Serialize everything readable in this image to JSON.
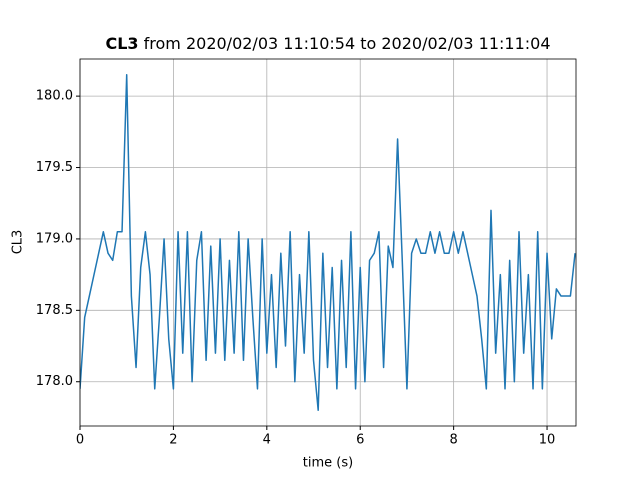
{
  "chart_data": {
    "type": "line",
    "title_bold": "CL3",
    "title": " from 2020/02/03 11:10:54 to 2020/02/03 11:11:04",
    "xlabel": "time (s)",
    "ylabel": "CL3",
    "xlim": [
      0,
      10.62
    ],
    "ylim": [
      177.69,
      180.26
    ],
    "xticks": [
      0,
      2,
      4,
      6,
      8,
      10
    ],
    "yticks": [
      {
        "value": 178,
        "label": "178.0"
      },
      178.5,
      {
        "value": 179,
        "label": "179.0"
      },
      179.5,
      {
        "value": 180,
        "label": "180.0"
      }
    ],
    "grid": true,
    "series": [
      {
        "color": "#1f77b4",
        "x": [
          0,
          0.1,
          0.2,
          0.3,
          0.4,
          0.5,
          0.6,
          0.7,
          0.8,
          0.9,
          1,
          1.1,
          1.2,
          1.3,
          1.4,
          1.5,
          1.6,
          1.7,
          1.8,
          1.9,
          2,
          2.1,
          2.2,
          2.3,
          2.4,
          2.5,
          2.6,
          2.7,
          2.8,
          2.9,
          3,
          3.1,
          3.2,
          3.3,
          3.4,
          3.5,
          3.6,
          3.7,
          3.8,
          3.9,
          4,
          4.1,
          4.2,
          4.3,
          4.4,
          4.5,
          4.6,
          4.7,
          4.8,
          4.9,
          5,
          5.1,
          5.2,
          5.3,
          5.4,
          5.5,
          5.6,
          5.7,
          5.8,
          5.9,
          6,
          6.1,
          6.2,
          6.3,
          6.4,
          6.5,
          6.6,
          6.7,
          6.8,
          6.9,
          7,
          7.1,
          7.2,
          7.3,
          7.4,
          7.5,
          7.6,
          7.7,
          7.8,
          7.9,
          8,
          8.1,
          8.2,
          8.3,
          8.4,
          8.5,
          8.6,
          8.7,
          8.8,
          8.9,
          9,
          9.1,
          9.2,
          9.3,
          9.4,
          9.5,
          9.6,
          9.7,
          9.8,
          9.9,
          10,
          10.1,
          10.2,
          10.3,
          10.4,
          10.5,
          10.6
        ],
        "values": [
          177.95,
          178.45,
          178.6,
          178.75,
          178.9,
          179.05,
          178.9,
          178.85,
          179.05,
          179.05,
          180.15,
          178.6,
          178.1,
          178.8,
          179.05,
          178.75,
          177.95,
          178.45,
          179.0,
          178.3,
          177.95,
          179.05,
          178.2,
          179.05,
          178.0,
          178.85,
          179.05,
          178.15,
          178.95,
          178.2,
          179.0,
          178.15,
          178.85,
          178.2,
          179.05,
          178.15,
          179.0,
          178.45,
          177.95,
          179.0,
          178.2,
          178.75,
          178.1,
          178.9,
          178.25,
          179.05,
          178.0,
          178.75,
          178.2,
          179.05,
          178.15,
          177.8,
          178.9,
          178.1,
          178.8,
          177.95,
          178.85,
          178.1,
          179.05,
          177.95,
          178.8,
          178.0,
          178.85,
          178.9,
          179.05,
          178.1,
          178.95,
          178.8,
          179.7,
          178.85,
          177.95,
          178.9,
          179.0,
          178.9,
          178.9,
          179.05,
          178.9,
          179.05,
          178.9,
          178.9,
          179.05,
          178.9,
          179.05,
          178.9,
          178.75,
          178.6,
          178.3,
          177.95,
          179.2,
          178.2,
          178.75,
          177.95,
          178.85,
          178.0,
          179.05,
          178.2,
          178.75,
          177.95,
          179.05,
          177.95,
          178.9,
          178.3,
          178.65,
          178.6,
          178.6,
          178.6,
          178.9
        ]
      }
    ]
  }
}
